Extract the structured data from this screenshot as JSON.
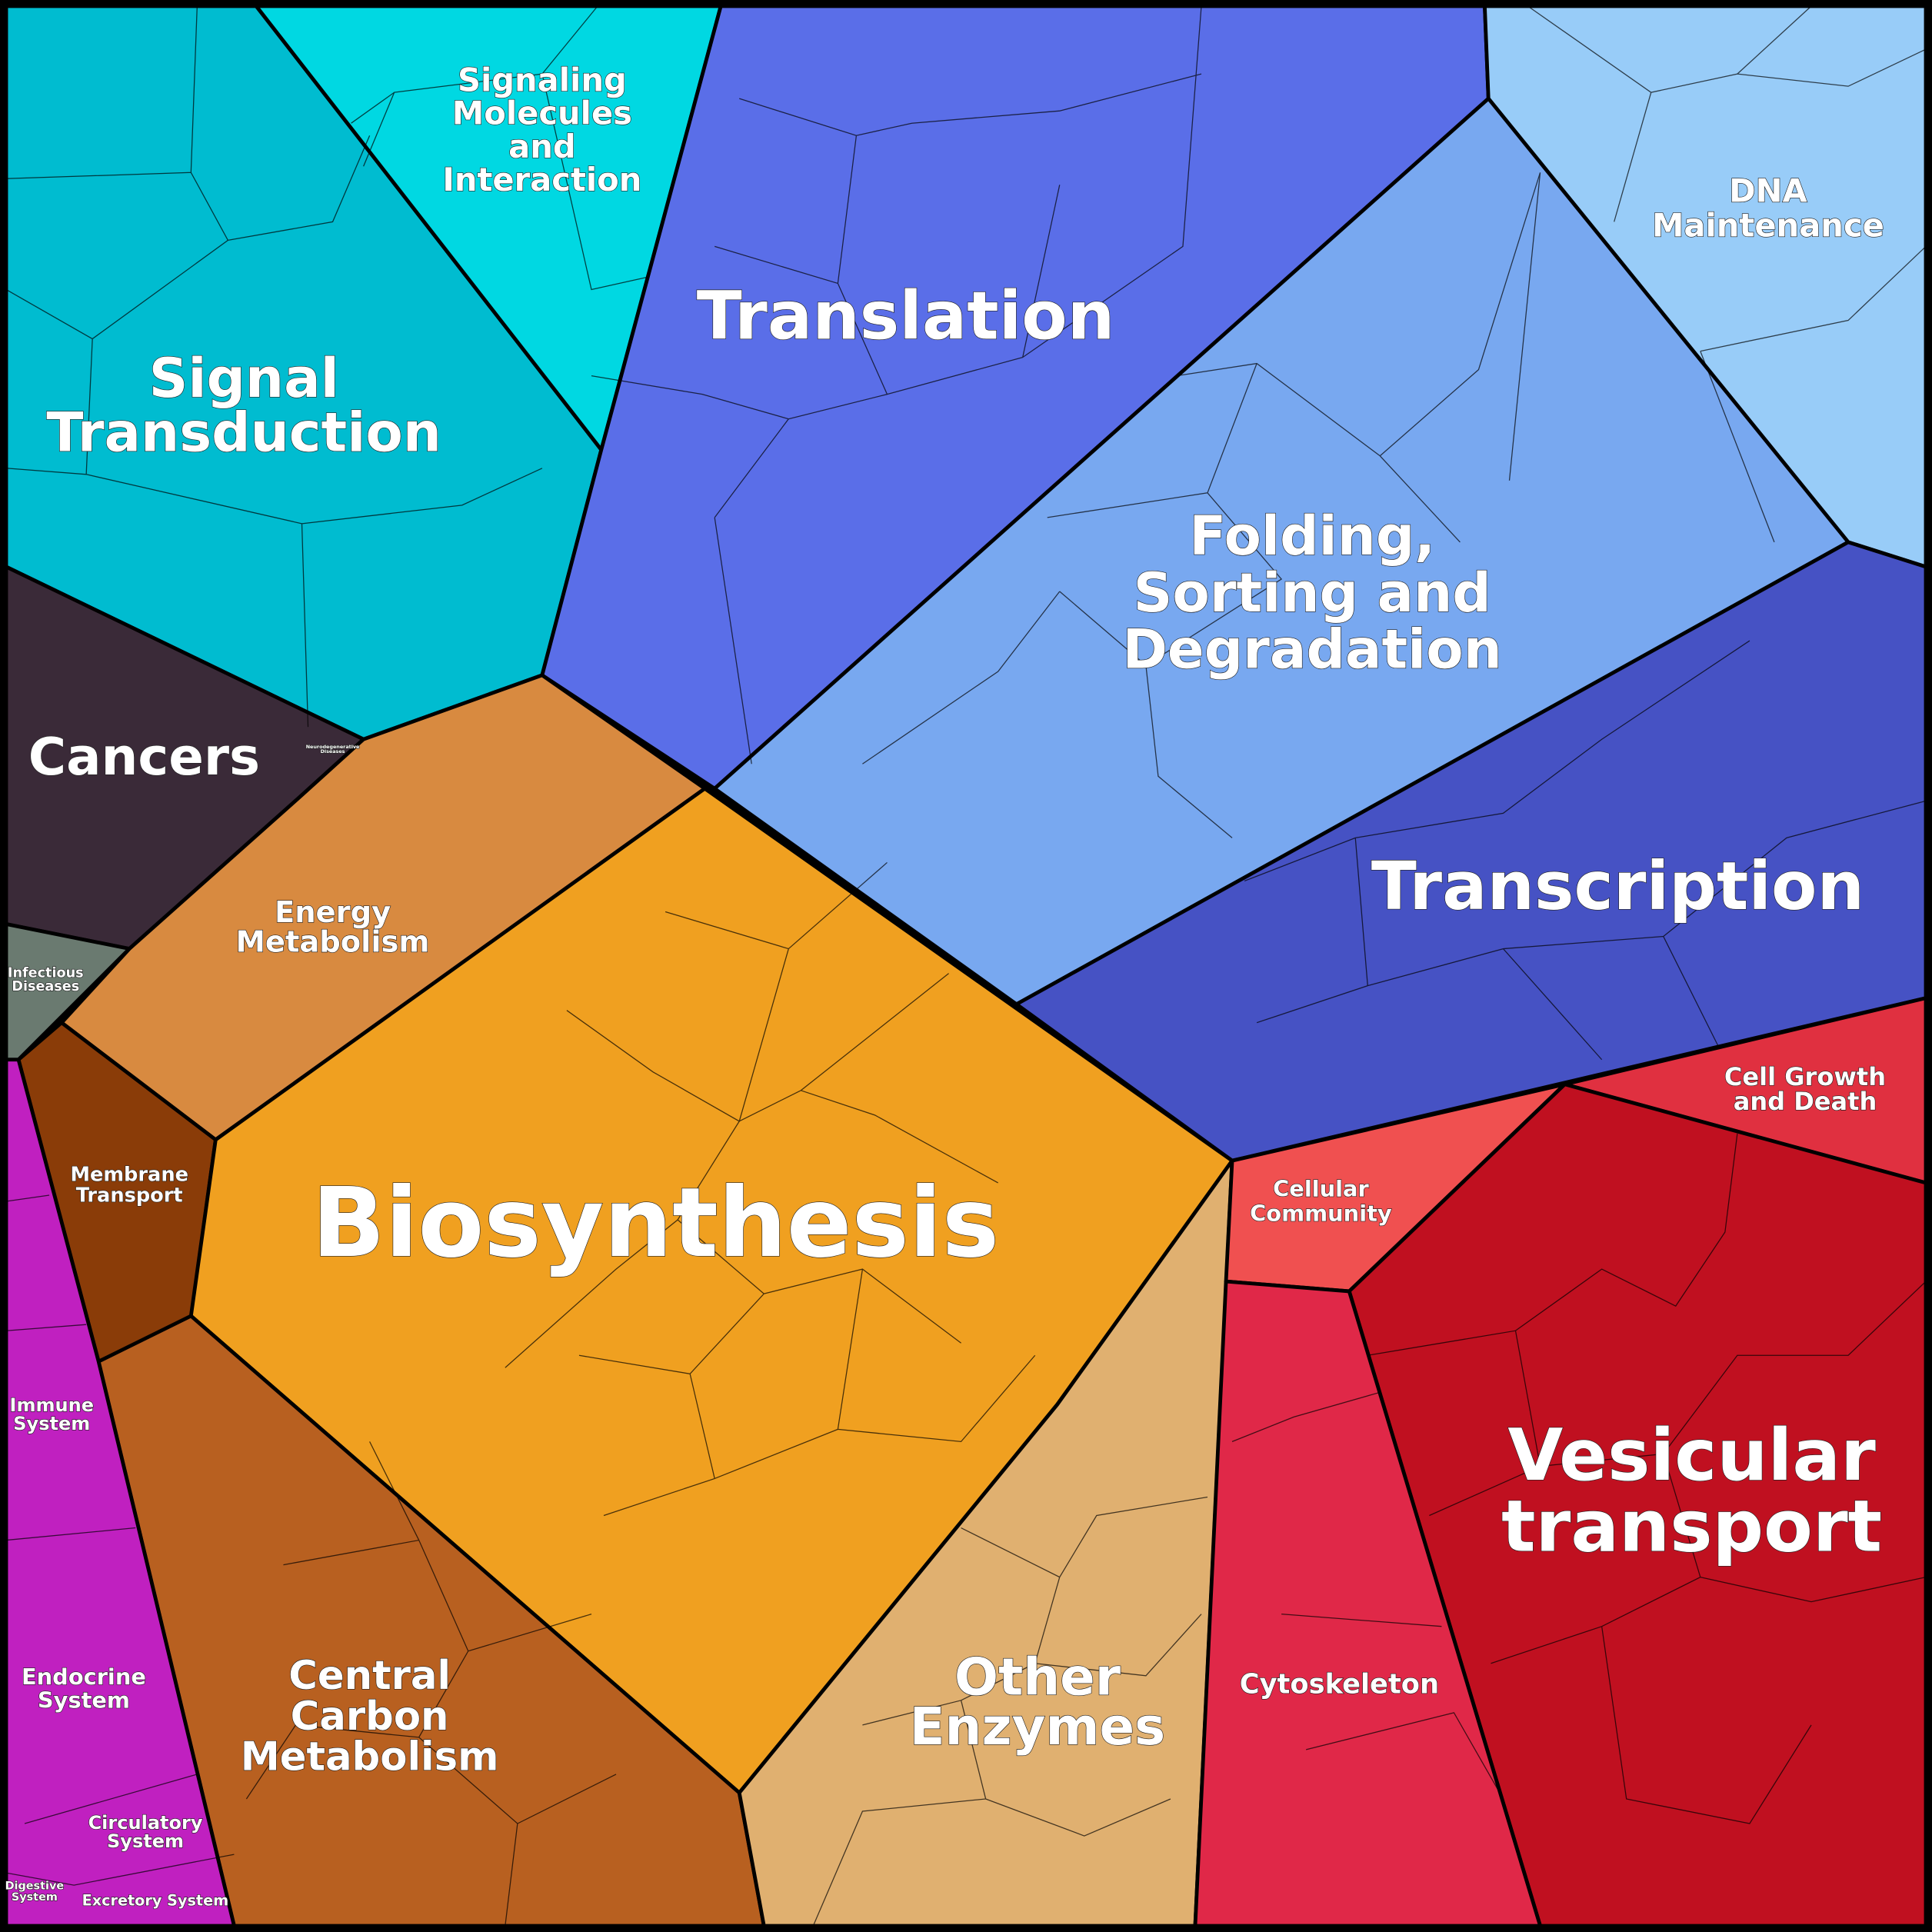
{
  "regions": [
    {
      "lines": [
        "Signal",
        "Transduction"
      ]
    },
    {
      "lines": [
        "Signaling",
        "Molecules",
        "and",
        "Interaction"
      ]
    },
    {
      "lines": [
        "Translation"
      ]
    },
    {
      "lines": [
        "DNA",
        "Maintenance"
      ]
    },
    {
      "lines": [
        "Folding,",
        "Sorting and",
        "Degradation"
      ]
    },
    {
      "lines": [
        "Transcription"
      ]
    },
    {
      "lines": [
        "Cancers"
      ]
    },
    {
      "lines": [
        "Infectious",
        "Diseases"
      ]
    },
    {
      "lines": [
        "Neurodegenerative",
        "Diseases"
      ]
    },
    {
      "lines": [
        "Energy",
        "Metabolism"
      ]
    },
    {
      "lines": [
        "Membrane",
        "Transport"
      ]
    },
    {
      "lines": [
        "Biosynthesis"
      ]
    },
    {
      "lines": [
        "Central",
        "Carbon",
        "Metabolism"
      ]
    },
    {
      "lines": [
        "Other",
        "Enzymes"
      ]
    },
    {
      "lines": [
        "Immune",
        "System"
      ]
    },
    {
      "lines": [
        "Endocrine",
        "System"
      ]
    },
    {
      "lines": [
        "Circulatory",
        "System"
      ]
    },
    {
      "lines": [
        "Digestive",
        "System"
      ]
    },
    {
      "lines": [
        "Excretory System"
      ]
    },
    {
      "lines": [
        "Cellular",
        "Community"
      ]
    },
    {
      "lines": [
        "Cell Growth",
        "and Death"
      ]
    },
    {
      "lines": [
        "Vesicular",
        "transport"
      ]
    },
    {
      "lines": [
        "Cytoskeleton"
      ]
    }
  ]
}
